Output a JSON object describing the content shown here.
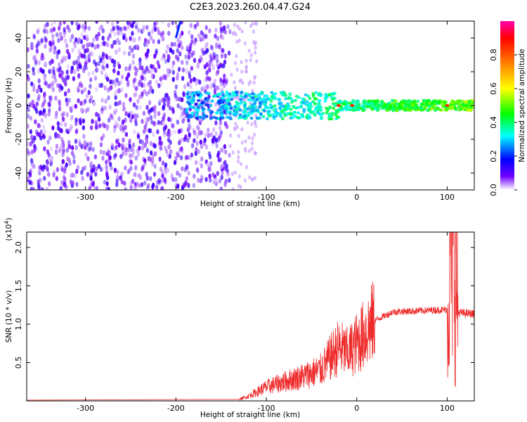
{
  "title": "C2E3.2023.260.04.47.G24",
  "chart_data": [
    {
      "type": "heatmap",
      "xlabel": "Height of straight line (km)",
      "ylabel": "Frequency (Hz)",
      "xlim": [
        -365,
        130
      ],
      "ylim": [
        -50,
        50
      ],
      "x_ticks": [
        -300,
        -200,
        -100,
        0,
        100
      ],
      "y_ticks": [
        -40,
        -20,
        0,
        20,
        40
      ],
      "colorbar": {
        "label": "Normalized spectral amplitude",
        "range": [
          0.0,
          1.0
        ],
        "ticks": [
          0.0,
          0.2,
          0.4,
          0.6,
          0.8
        ],
        "tick_labels": [
          "0.0",
          "0.2",
          "0.4",
          "0.6",
          "0.8"
        ],
        "colors": [
          "#ffffff",
          "#7000ff",
          "#0000ff",
          "#00ffff",
          "#00ff00",
          "#ffff00",
          "#ff8000",
          "#ff0000",
          "#ff00aa"
        ]
      },
      "features": [
        {
          "desc": "noise region",
          "x_range": [
            -365,
            -140
          ],
          "freq_range": [
            -50,
            50
          ],
          "amplitude": 0.1
        },
        {
          "desc": "signal band",
          "x_range": [
            -190,
            130
          ],
          "freq_center": 0,
          "amplitude_start": 0.25,
          "amplitude_end": 0.5
        },
        {
          "desc": "peaks",
          "x": [
            -20,
            -5,
            100
          ],
          "freq": 0,
          "amplitude": 0.85
        },
        {
          "desc": "streak",
          "x_range": [
            -200,
            -195
          ],
          "freq_range": [
            40,
            50
          ],
          "amplitude": 0.2
        }
      ]
    },
    {
      "type": "line",
      "xlabel": "Height of straight line (km)",
      "ylabel": "SNR (10 * v/v)",
      "y_multiplier": "(x10",
      "y_multiplier_exp": "4",
      "y_multiplier_close": ")",
      "xlim": [
        -365,
        130
      ],
      "ylim": [
        0,
        22000
      ],
      "x_ticks": [
        -300,
        -200,
        -100,
        0,
        100
      ],
      "y_ticks": [
        5000,
        10000,
        15000,
        20000
      ],
      "y_tick_labels": [
        "0.5",
        "1.0",
        "1.5",
        "2.0"
      ],
      "color": "#ee2a2a",
      "envelope": {
        "x": [
          -365,
          -130,
          -120,
          -100,
          -80,
          -60,
          -40,
          -30,
          -20,
          -10,
          0,
          20,
          40,
          60,
          80,
          100,
          104,
          106,
          108,
          112,
          130
        ],
        "y": [
          100,
          200,
          600,
          1800,
          2500,
          3200,
          4000,
          5500,
          7000,
          6200,
          7500,
          10500,
          11600,
          11700,
          11800,
          11900,
          18000,
          22000,
          20000,
          11500,
          11300
        ]
      }
    }
  ]
}
